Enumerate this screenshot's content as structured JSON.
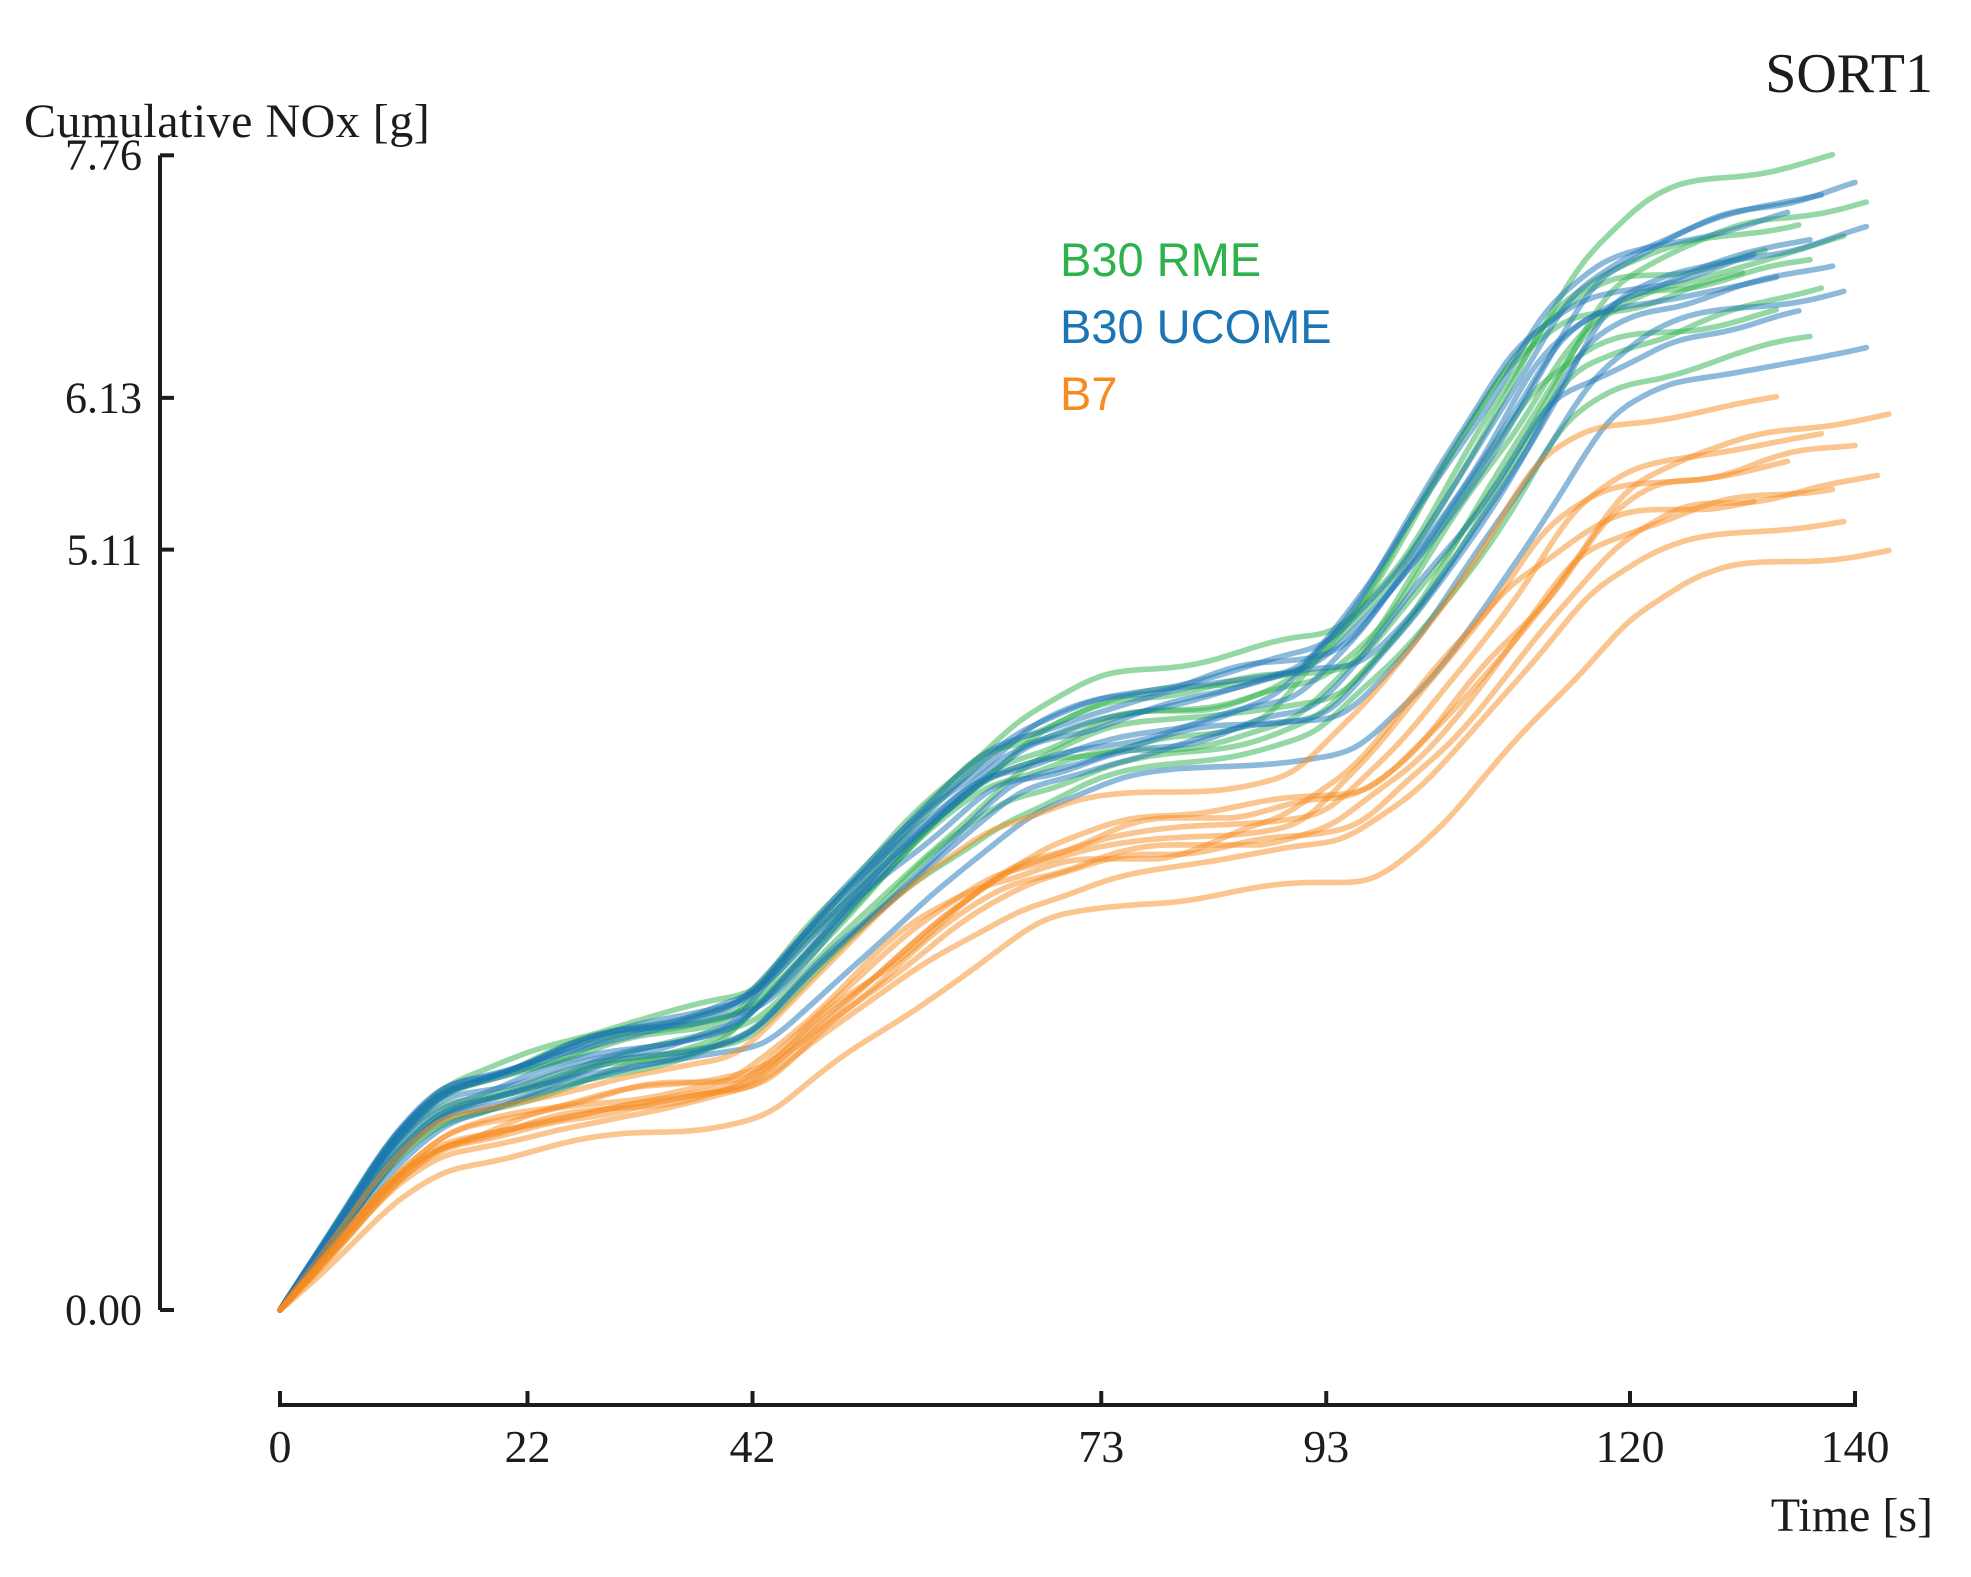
{
  "title": {
    "y_axis": "Cumulative NOx [g]",
    "corner": "SORT1",
    "x_axis": "Time [s]"
  },
  "legend": {
    "items": [
      {
        "label": "B30 RME",
        "color": "#2eb24b"
      },
      {
        "label": "B30 UCOME",
        "color": "#1b75b5"
      },
      {
        "label": "B7",
        "color": "#f68b1f"
      }
    ]
  },
  "chart_data": {
    "type": "line",
    "title": "SORT1",
    "ylabel": "Cumulative NOx [g]",
    "xlabel": "Time [s]",
    "grid": false,
    "legend_position": "upper center",
    "xlim": [
      0,
      143
    ],
    "ylim": [
      0,
      7.76
    ],
    "x_ticks": [
      {
        "label": "0",
        "value": 0
      },
      {
        "label": "22",
        "value": 22
      },
      {
        "label": "42",
        "value": 42
      },
      {
        "label": "73",
        "value": 73
      },
      {
        "label": "93",
        "value": 93
      },
      {
        "label": "120",
        "value": 120
      },
      {
        "label": "140",
        "value": 140
      }
    ],
    "y_ticks": [
      {
        "label": "7.76",
        "value": 7.76
      },
      {
        "label": "6.13",
        "value": 6.13
      },
      {
        "label": "5.11",
        "value": 5.11
      },
      {
        "label": "0.00",
        "value": 0.0
      }
    ],
    "base_shape": {
      "t": [
        0,
        4.4,
        9.8,
        14.2,
        19.6,
        24.9,
        30.2,
        36.1,
        41.8,
        48.0,
        56.6,
        64.9,
        72.9,
        80.0,
        87.1,
        93.0,
        99.6,
        104.9,
        110.2,
        114.8,
        120.0,
        126.2,
        131.6,
        137.0
      ],
      "f": [
        0,
        0.065,
        0.15,
        0.196,
        0.212,
        0.231,
        0.247,
        0.258,
        0.273,
        0.347,
        0.438,
        0.515,
        0.545,
        0.558,
        0.572,
        0.585,
        0.663,
        0.748,
        0.832,
        0.916,
        0.954,
        0.972,
        0.986,
        1.0
      ]
    },
    "series": [
      {
        "name": "B30 RME",
        "color": "#2eb24b",
        "runs": [
          {
            "final_g": 7.76,
            "end_s": 138
          },
          {
            "final_g": 7.45,
            "end_s": 141
          },
          {
            "final_g": 7.3,
            "end_s": 135
          },
          {
            "final_g": 7.22,
            "end_s": 139
          },
          {
            "final_g": 7.12,
            "end_s": 132
          },
          {
            "final_g": 7.05,
            "end_s": 136
          },
          {
            "final_g": 6.97,
            "end_s": 130
          },
          {
            "final_g": 6.88,
            "end_s": 137
          },
          {
            "final_g": 6.73,
            "end_s": 133
          },
          {
            "final_g": 6.52,
            "end_s": 136
          }
        ]
      },
      {
        "name": "B30 UCOME",
        "color": "#1b75b5",
        "runs": [
          {
            "final_g": 7.58,
            "end_s": 140
          },
          {
            "final_g": 7.49,
            "end_s": 137
          },
          {
            "final_g": 7.38,
            "end_s": 134
          },
          {
            "final_g": 7.28,
            "end_s": 141
          },
          {
            "final_g": 7.18,
            "end_s": 136
          },
          {
            "final_g": 7.1,
            "end_s": 131
          },
          {
            "final_g": 7.02,
            "end_s": 138
          },
          {
            "final_g": 6.95,
            "end_s": 133
          },
          {
            "final_g": 6.86,
            "end_s": 139
          },
          {
            "final_g": 6.7,
            "end_s": 135
          },
          {
            "final_g": 6.48,
            "end_s": 141
          }
        ]
      },
      {
        "name": "B7",
        "color": "#f68b1f",
        "runs": [
          {
            "final_g": 6.13,
            "end_s": 133
          },
          {
            "final_g": 6.02,
            "end_s": 143
          },
          {
            "final_g": 5.88,
            "end_s": 137
          },
          {
            "final_g": 5.8,
            "end_s": 140
          },
          {
            "final_g": 5.71,
            "end_s": 134
          },
          {
            "final_g": 5.62,
            "end_s": 142
          },
          {
            "final_g": 5.52,
            "end_s": 138
          },
          {
            "final_g": 5.44,
            "end_s": 131
          },
          {
            "final_g": 5.3,
            "end_s": 139
          },
          {
            "final_g": 5.11,
            "end_s": 143
          }
        ]
      }
    ]
  }
}
